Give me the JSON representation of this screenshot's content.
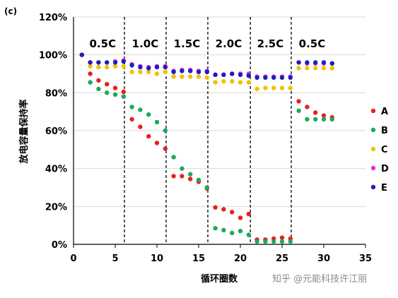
{
  "chart_data": {
    "type": "scatter",
    "panel_label": "(c)",
    "xlabel": "循环圈数",
    "ylabel": "放电容量保持率",
    "xlim": [
      0,
      35
    ],
    "ylim": [
      0,
      120
    ],
    "xticks": [
      "0",
      "5",
      "10",
      "15",
      "20",
      "25",
      "30",
      "35"
    ],
    "yticks": [
      "0%",
      "20%",
      "40%",
      "60%",
      "80%",
      "100%",
      "120%"
    ],
    "rate_dividers": [
      6.1,
      11.1,
      16.1,
      21.2,
      26.1
    ],
    "rate_labels": [
      {
        "text": "0.5C",
        "x_center": 3.5
      },
      {
        "text": "1.0C",
        "x_center": 8.6
      },
      {
        "text": "1.5C",
        "x_center": 13.6
      },
      {
        "text": "2.0C",
        "x_center": 18.6
      },
      {
        "text": "2.5C",
        "x_center": 23.6
      },
      {
        "text": "0.5C",
        "x_center": 28.6
      }
    ],
    "legend_position": "right",
    "series": [
      {
        "name": "A",
        "color": "#e8201e",
        "x": [
          1,
          2,
          3,
          4,
          5,
          6,
          7,
          8,
          9,
          10,
          11,
          12,
          13,
          14,
          15,
          16,
          17,
          18,
          19,
          20,
          21,
          22,
          23,
          24,
          25,
          26,
          27,
          28,
          29,
          30,
          31
        ],
        "y": [
          100,
          90,
          86.5,
          84.5,
          82.5,
          80.5,
          66,
          62,
          57,
          53.5,
          50.5,
          36,
          36,
          34.5,
          33,
          29.5,
          19.5,
          18.5,
          17,
          14,
          16,
          2.5,
          2.5,
          3,
          3.5,
          3,
          75.5,
          72.5,
          69.5,
          68,
          67
        ]
      },
      {
        "name": "B",
        "color": "#1fa85c",
        "x": [
          1,
          2,
          3,
          4,
          5,
          6,
          7,
          8,
          9,
          10,
          11,
          12,
          13,
          14,
          15,
          16,
          17,
          18,
          19,
          20,
          21,
          22,
          23,
          24,
          25,
          26,
          27,
          28,
          29,
          30,
          31
        ],
        "y": [
          100,
          85.5,
          82,
          80,
          79,
          78,
          72.5,
          71,
          68.5,
          64.5,
          60,
          46,
          40,
          37,
          34,
          30,
          8.5,
          7.5,
          6,
          7,
          5,
          1.5,
          1.5,
          1.5,
          1.5,
          1.5,
          70.5,
          66,
          66,
          66,
          66
        ]
      },
      {
        "name": "C",
        "color": "#f2c100",
        "x": [
          1,
          2,
          3,
          4,
          5,
          6,
          7,
          8,
          9,
          10,
          11,
          12,
          13,
          14,
          15,
          16,
          17,
          18,
          19,
          20,
          21,
          22,
          23,
          24,
          25,
          26,
          27,
          28,
          29,
          30,
          31
        ],
        "y": [
          100,
          94,
          93.5,
          93.5,
          94,
          94,
          91,
          91,
          91,
          90,
          91,
          88.5,
          88.5,
          88.5,
          88.5,
          88,
          85.5,
          86,
          86,
          85.5,
          85.5,
          82,
          82.5,
          82.5,
          82.5,
          82.5,
          93,
          93,
          93,
          93,
          93
        ]
      },
      {
        "name": "D",
        "color": "#e62ed8",
        "x": [
          1,
          2,
          3,
          4,
          5,
          6,
          7,
          8,
          9,
          10,
          11,
          12,
          13,
          14,
          15,
          16,
          17,
          18,
          19,
          20,
          21,
          22,
          23,
          24,
          25,
          26,
          27,
          28,
          29,
          30,
          31
        ],
        "y": [
          100,
          96,
          96,
          96,
          96.5,
          97,
          95,
          94,
          93.5,
          94,
          94,
          91.5,
          92,
          92,
          91.5,
          91.5,
          89.5,
          89.5,
          90,
          90,
          90,
          88.5,
          88.5,
          88.5,
          88.5,
          88.5,
          96,
          95.5,
          95.5,
          95.5,
          95.5
        ]
      },
      {
        "name": "E",
        "color": "#1f1fbf",
        "x": [
          1,
          2,
          3,
          4,
          5,
          6,
          7,
          8,
          9,
          10,
          11,
          12,
          13,
          14,
          15,
          16,
          17,
          18,
          19,
          20,
          21,
          22,
          23,
          24,
          25,
          26,
          27,
          28,
          29,
          30,
          31
        ],
        "y": [
          100,
          96,
          96,
          96,
          96,
          96.5,
          94.5,
          93.5,
          93,
          93.5,
          93.5,
          91,
          91.5,
          91.5,
          91,
          91,
          89.5,
          89.5,
          90,
          89.5,
          89,
          88,
          88,
          88,
          88,
          88,
          96,
          96,
          96,
          96,
          95.5
        ]
      }
    ]
  },
  "watermark": "知乎 @元能科技许江丽"
}
